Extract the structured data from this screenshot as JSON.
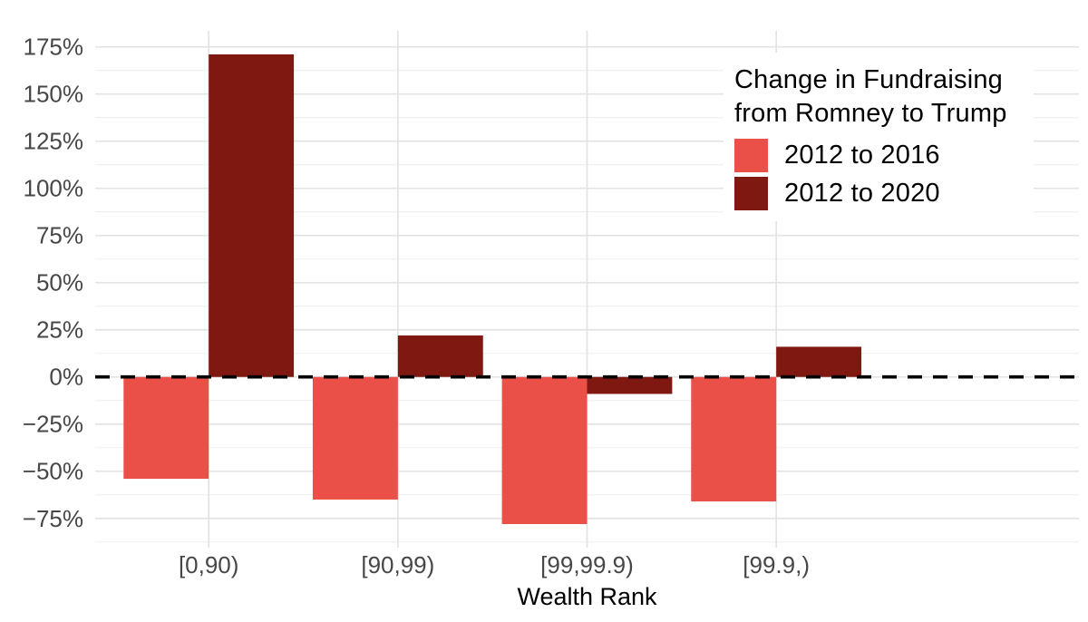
{
  "legend": {
    "title_line1": "Change in Fundraising",
    "title_line2": "from Romney to Trump",
    "items": [
      {
        "label": "2012 to 2016",
        "color": "#EB5048"
      },
      {
        "label": "2012 to 2020",
        "color": "#7E1810"
      }
    ]
  },
  "chart_data": {
    "type": "bar",
    "orientation": "vertical",
    "grouping": "dodged",
    "title": "",
    "legend_title": "Change in Fundraising from Romney to Trump",
    "legend_position": "top-right-inside",
    "xlabel": "Wealth Rank",
    "ylabel": "",
    "categories": [
      "[0,90)",
      "[90,99)",
      "[99,99.9)",
      "[99.9,)"
    ],
    "series": [
      {
        "name": "2012 to 2016",
        "color": "#EB5048",
        "values": [
          -54,
          -65,
          -78,
          -66
        ]
      },
      {
        "name": "2012 to 2020",
        "color": "#7E1810",
        "values": [
          171,
          22,
          -9,
          16
        ]
      }
    ],
    "y_ticks": [
      -75,
      -50,
      -25,
      0,
      25,
      50,
      75,
      100,
      125,
      150,
      175
    ],
    "y_tick_suffix": "%",
    "ylim": [
      -90.5,
      183.5
    ],
    "grid": true,
    "minor_grid_step": 25,
    "minor_grid_offset": 12.5,
    "zero_line": "dashed-black"
  },
  "colors": {
    "background": "#FFFFFF",
    "grid_major": "#E3E3E3",
    "grid_minor": "#F0F0F0",
    "axis_text": "#474747",
    "axis_title": "#000000",
    "zero_line": "#000000"
  }
}
